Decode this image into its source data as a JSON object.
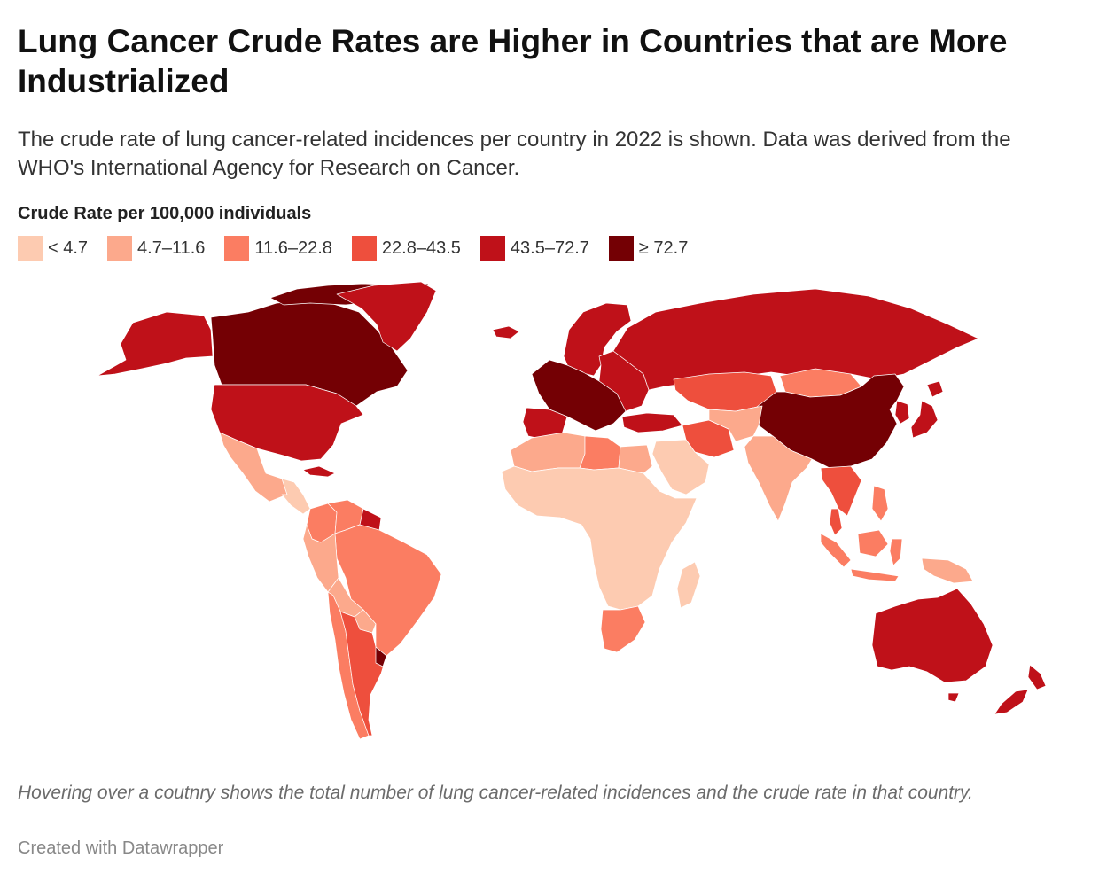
{
  "title": "Lung Cancer Crude Rates are Higher in Countries that are More Industrialized",
  "subtitle": "The crude rate of lung cancer-related incidences per country in 2022 is shown. Data was derived from the WHO's International Agency for Research on Cancer.",
  "legend": {
    "title": "Crude Rate per 100,000 individuals",
    "bins": [
      {
        "label": "< 4.7",
        "color": "#fdcbb1"
      },
      {
        "label": "4.7–11.6",
        "color": "#fca98c"
      },
      {
        "label": "11.6–22.8",
        "color": "#fb7d62"
      },
      {
        "label": "22.8–43.5",
        "color": "#ee4f3d"
      },
      {
        "label": "43.5–72.7",
        "color": "#bf1119"
      },
      {
        "label": "≥ 72.7",
        "color": "#740004"
      }
    ]
  },
  "note": "Hovering over a coutnry shows the total number of lung cancer-related incidences and the crude rate in that country.",
  "credit": "Created with Datawrapper",
  "map_regions": [
    {
      "name": "Alaska",
      "bin": 4
    },
    {
      "name": "Canada",
      "bin": 5
    },
    {
      "name": "Greenland",
      "bin": 4
    },
    {
      "name": "United States",
      "bin": 4
    },
    {
      "name": "Mexico",
      "bin": 1
    },
    {
      "name": "Central America",
      "bin": 0
    },
    {
      "name": "Cuba",
      "bin": 4
    },
    {
      "name": "Colombia",
      "bin": 2
    },
    {
      "name": "Venezuela",
      "bin": 2
    },
    {
      "name": "Guyanas",
      "bin": 4
    },
    {
      "name": "Brazil",
      "bin": 2
    },
    {
      "name": "Peru",
      "bin": 1
    },
    {
      "name": "Bolivia",
      "bin": 1
    },
    {
      "name": "Paraguay",
      "bin": 1
    },
    {
      "name": "Chile",
      "bin": 2
    },
    {
      "name": "Argentina",
      "bin": 3
    },
    {
      "name": "Uruguay",
      "bin": 5
    },
    {
      "name": "Iceland",
      "bin": 4
    },
    {
      "name": "Scandinavia",
      "bin": 4
    },
    {
      "name": "Western Europe",
      "bin": 5
    },
    {
      "name": "Iberia",
      "bin": 4
    },
    {
      "name": "Eastern Europe",
      "bin": 4
    },
    {
      "name": "Russia",
      "bin": 4
    },
    {
      "name": "Turkey",
      "bin": 4
    },
    {
      "name": "Kazakhstan",
      "bin": 3
    },
    {
      "name": "Mongolia",
      "bin": 2
    },
    {
      "name": "China",
      "bin": 5
    },
    {
      "name": "Japan",
      "bin": 4
    },
    {
      "name": "Korea",
      "bin": 4
    },
    {
      "name": "Iran",
      "bin": 3
    },
    {
      "name": "Central Asia",
      "bin": 1
    },
    {
      "name": "Arabian Peninsula",
      "bin": 0
    },
    {
      "name": "India",
      "bin": 1
    },
    {
      "name": "Southeast Asia",
      "bin": 3
    },
    {
      "name": "Indonesia",
      "bin": 2
    },
    {
      "name": "Philippines",
      "bin": 2
    },
    {
      "name": "Papua New Guinea",
      "bin": 1
    },
    {
      "name": "North Africa West",
      "bin": 1
    },
    {
      "name": "Libya",
      "bin": 2
    },
    {
      "name": "Egypt",
      "bin": 1
    },
    {
      "name": "Sub-Saharan Africa",
      "bin": 0
    },
    {
      "name": "South Africa",
      "bin": 2
    },
    {
      "name": "Madagascar",
      "bin": 0
    },
    {
      "name": "Australia",
      "bin": 4
    },
    {
      "name": "New Zealand",
      "bin": 4
    }
  ]
}
